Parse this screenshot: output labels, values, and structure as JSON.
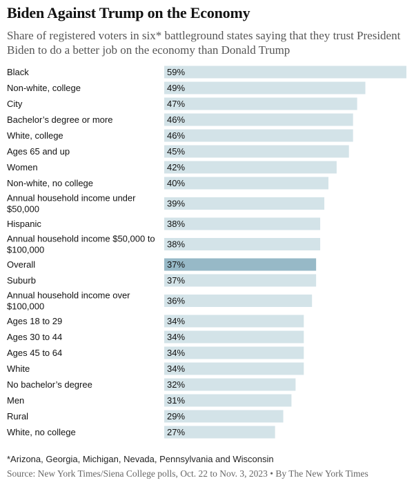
{
  "header": {
    "title": "Biden Against Trump on the Economy",
    "subtitle": "Share of registered voters in six* battleground states saying that they trust President Biden to do a better job on the economy than Donald Trump"
  },
  "footer": {
    "footnote": "*Arizona, Georgia, Michigan, Nevada, Pennsylvania and Wisconsin",
    "source": "Source: New York Times/Siena College polls, Oct. 22 to Nov. 3, 2023 • By The New York Times"
  },
  "colors": {
    "bar": "#d3e3e8",
    "highlight_bar": "#97b9c7",
    "text": "#121212"
  },
  "chart_data": {
    "type": "bar",
    "orientation": "horizontal",
    "title": "Biden Against Trump on the Economy",
    "value_suffix": "%",
    "xlim": [
      0,
      60
    ],
    "grid": false,
    "highlight": "Overall",
    "rows": [
      {
        "label": [
          "Black"
        ],
        "value": 59
      },
      {
        "label": [
          "Non-white, college"
        ],
        "value": 49
      },
      {
        "label": [
          "City"
        ],
        "value": 47
      },
      {
        "label": [
          "Bachelor’s degree or more"
        ],
        "value": 46
      },
      {
        "label": [
          "White, college"
        ],
        "value": 46
      },
      {
        "label": [
          "Ages 65 and up"
        ],
        "value": 45
      },
      {
        "label": [
          "Women"
        ],
        "value": 42
      },
      {
        "label": [
          "Non-white, no college"
        ],
        "value": 40
      },
      {
        "label": [
          "Annual household income under",
          "$50,000"
        ],
        "value": 39
      },
      {
        "label": [
          "Hispanic"
        ],
        "value": 38
      },
      {
        "label": [
          "Annual household income $50,000 to",
          "$100,000"
        ],
        "value": 38
      },
      {
        "label": [
          "Overall"
        ],
        "value": 37
      },
      {
        "label": [
          "Suburb"
        ],
        "value": 37
      },
      {
        "label": [
          "Annual household income over",
          "$100,000"
        ],
        "value": 36
      },
      {
        "label": [
          "Ages 18 to 29"
        ],
        "value": 34
      },
      {
        "label": [
          "Ages 30 to 44"
        ],
        "value": 34
      },
      {
        "label": [
          "Ages 45 to 64"
        ],
        "value": 34
      },
      {
        "label": [
          "White"
        ],
        "value": 34
      },
      {
        "label": [
          "No bachelor’s degree"
        ],
        "value": 32
      },
      {
        "label": [
          "Men"
        ],
        "value": 31
      },
      {
        "label": [
          "Rural"
        ],
        "value": 29
      },
      {
        "label": [
          "White, no college"
        ],
        "value": 27
      }
    ]
  }
}
